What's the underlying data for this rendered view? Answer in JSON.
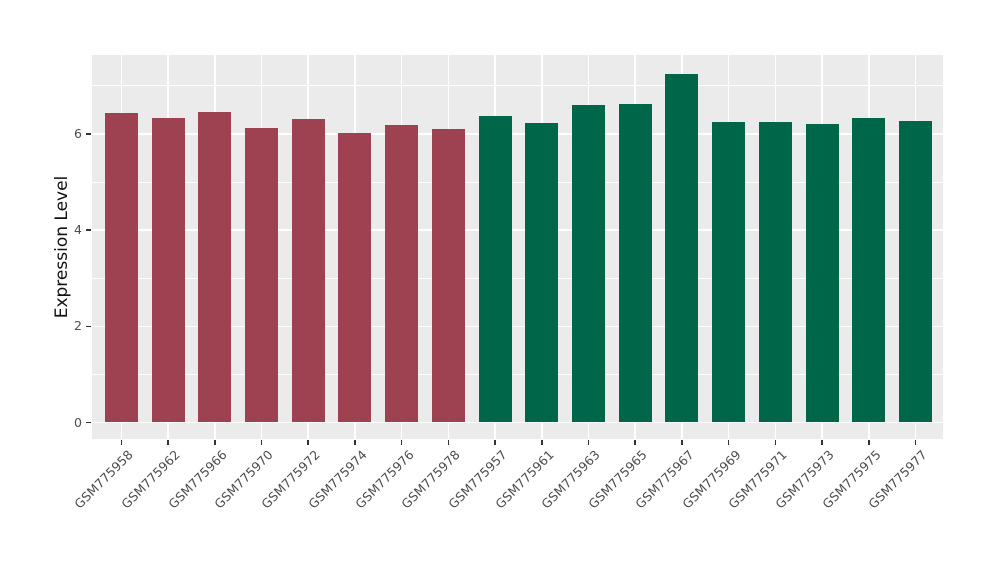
{
  "chart_data": {
    "type": "bar",
    "title": "",
    "xlabel": "",
    "ylabel": "Expression Level",
    "categories": [
      "GSM775958",
      "GSM775962",
      "GSM775966",
      "GSM775970",
      "GSM775972",
      "GSM775974",
      "GSM775976",
      "GSM775978",
      "GSM775957",
      "GSM775961",
      "GSM775963",
      "GSM775965",
      "GSM775967",
      "GSM775969",
      "GSM775971",
      "GSM775973",
      "GSM775975",
      "GSM775977"
    ],
    "values": [
      6.43,
      6.33,
      6.46,
      6.12,
      6.32,
      6.03,
      6.18,
      6.1,
      6.37,
      6.23,
      6.61,
      6.63,
      7.25,
      6.24,
      6.26,
      6.21,
      6.33,
      6.27
    ],
    "groups": [
      "A",
      "A",
      "A",
      "A",
      "A",
      "A",
      "A",
      "A",
      "B",
      "B",
      "B",
      "B",
      "B",
      "B",
      "B",
      "B",
      "B",
      "B"
    ],
    "palette": {
      "A": "#9E4150",
      "B": "#006649"
    },
    "y_ticks": [
      0,
      2,
      4,
      6
    ],
    "y_minor_gridlines": [
      1,
      3,
      5,
      7
    ],
    "ylim": [
      0,
      7.64
    ],
    "legend_position": "none",
    "grid": "on",
    "panel_background": "#EBEBEB",
    "gridline_color": "#FFFFFF",
    "axis_text_color": "#4D4D4D"
  }
}
